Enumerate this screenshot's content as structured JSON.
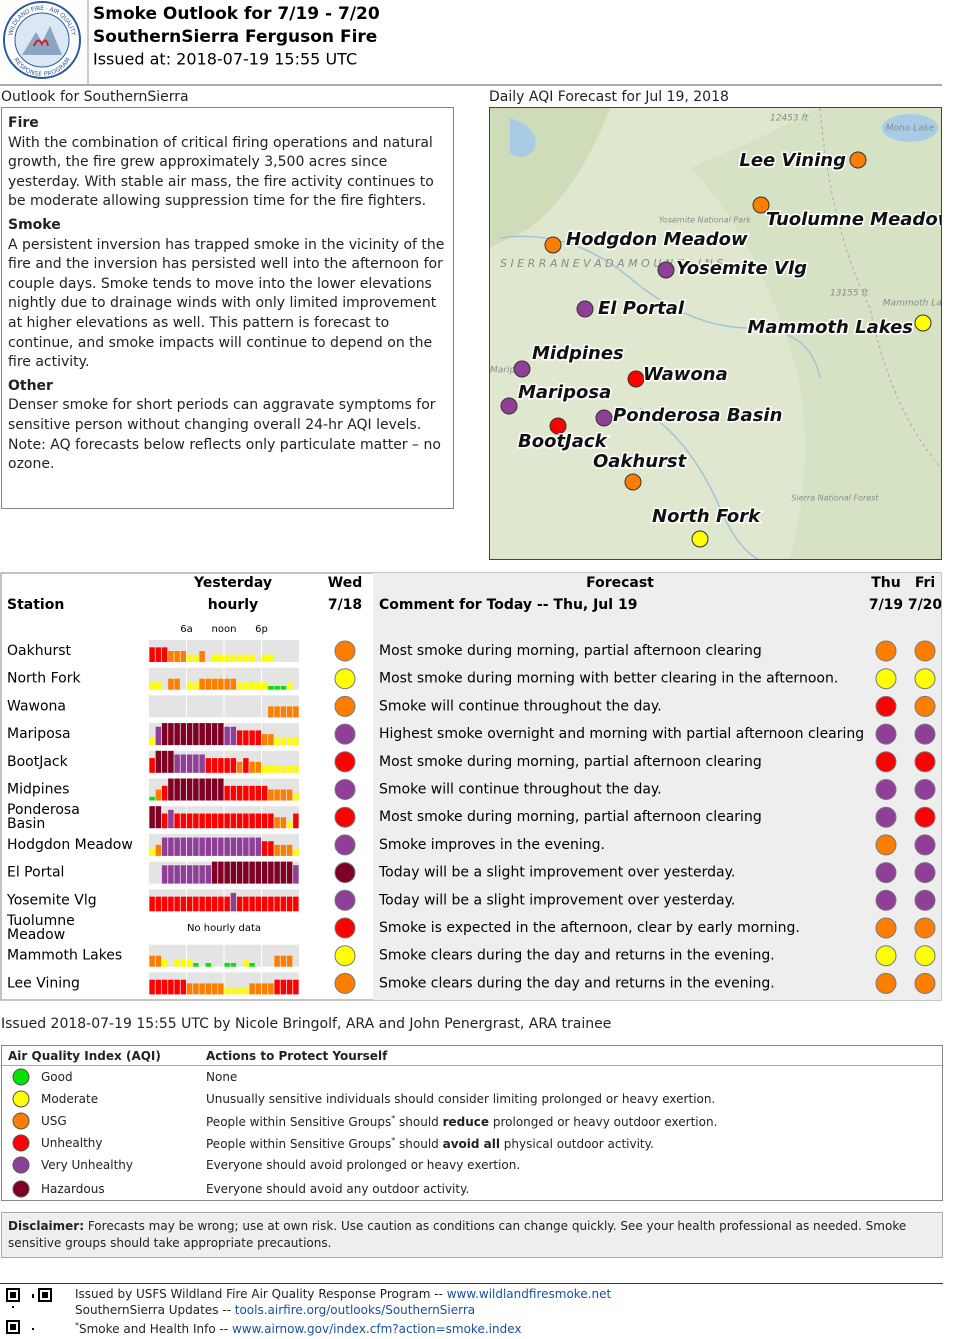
{
  "header": {
    "logo_top": "WILDLAND FIRE · AIR QUALITY",
    "logo_bottom": "RESPONSE PROGRAM",
    "title": "Smoke Outlook for 7/19 - 7/20",
    "subtitle": "SouthernSierra Ferguson Fire",
    "issued": "Issued at: 2018-07-19 15:55 UTC"
  },
  "outlook": {
    "heading": "Outlook for SouthernSierra",
    "sections": [
      {
        "title": "Fire",
        "text": "With the combination of critical firing operations and natural growth, the fire grew approximately 3,500 acres since yesterday. With stable air mass, the fire activity continues to be moderate allowing suppression time for the fire fighters."
      },
      {
        "title": "Smoke",
        "text": "A persistent inversion has trapped smoke in the vicinity of the fire and the inversion has persisted well into the afternoon for couple days. Smoke tends to move into the lower elevations nightly due to drainage winds with only limited improvement at higher elevations as well. This pattern is forecast to continue, and smoke impacts will continue to depend on the fire activity."
      },
      {
        "title": "Other",
        "text": "Denser smoke for short periods can aggravate symptoms for sensitive person without changing overall 24-hr AQI levels. Note: AQ forecasts below reflects only particulate matter – no ozone."
      }
    ]
  },
  "map": {
    "title": "Daily AQI Forecast for Jul 19, 2018",
    "features": [
      "12453 ft",
      "Mono Lake",
      "Yosemite National Park",
      "S I E R R A   N E V A D A   M O U N T A I N S",
      "13155 ft",
      "Mammoth Lakes",
      "Mariposa",
      "Sierra National Forest"
    ],
    "markers": [
      {
        "label": "Lee Vining",
        "level": "USG"
      },
      {
        "label": "Tuolumne Meadow",
        "level": "USG"
      },
      {
        "label": "Hodgdon Meadow",
        "level": "USG"
      },
      {
        "label": "Yosemite Vlg",
        "level": "Very Unhealthy"
      },
      {
        "label": "El Portal",
        "level": "Very Unhealthy"
      },
      {
        "label": "Mammoth Lakes",
        "level": "Moderate"
      },
      {
        "label": "Midpines",
        "level": "Very Unhealthy"
      },
      {
        "label": "Wawona",
        "level": "Unhealthy"
      },
      {
        "label": "Mariposa",
        "level": "Very Unhealthy"
      },
      {
        "label": "Ponderosa Basin",
        "level": "Very Unhealthy"
      },
      {
        "label": "BootJack",
        "level": "Unhealthy"
      },
      {
        "label": "Oakhurst",
        "level": "USG"
      },
      {
        "label": "North Fork",
        "level": "Moderate"
      }
    ]
  },
  "table": {
    "headers": {
      "yesterday": "Yesterday",
      "hourly": "hourly",
      "wed": "Wed",
      "wed_date": "7/18",
      "forecast": "Forecast",
      "station": "Station",
      "comment": "Comment for Today -- Thu, Jul 19",
      "thu": "Thu",
      "thu_date": "7/19",
      "fri": "Fri",
      "fri_date": "7/20"
    },
    "xlim": [
      0,
      24
    ],
    "ylim": [
      0,
      6
    ],
    "hour_ticks": [
      {
        "value": 6,
        "label": "6a"
      },
      {
        "value": 12,
        "label": "noon"
      },
      {
        "value": 18,
        "label": "6p"
      }
    ],
    "rows": [
      {
        "station": "Oakhurst",
        "hourly": [
          4,
          4,
          4,
          3,
          3,
          3,
          2,
          2,
          3,
          null,
          2,
          2,
          2,
          2,
          2,
          2,
          2,
          null,
          2,
          2,
          null,
          null,
          null,
          null
        ],
        "wed": "USG",
        "comment": "Most smoke during morning, partial afternoon clearing",
        "thu": "USG",
        "fri": "USG"
      },
      {
        "station": "North Fork",
        "hourly": [
          2,
          2,
          null,
          3,
          3,
          null,
          2,
          2,
          3,
          3,
          3,
          3,
          3,
          3,
          2,
          2,
          2,
          2,
          2,
          1,
          1,
          1,
          2,
          null
        ],
        "wed": "Moderate",
        "comment": "Most smoke during morning with better clearing in the afternoon.",
        "thu": "Moderate",
        "fri": "Moderate"
      },
      {
        "station": "Wawona",
        "hourly": [
          null,
          null,
          null,
          null,
          null,
          null,
          null,
          null,
          null,
          null,
          null,
          null,
          null,
          null,
          null,
          null,
          null,
          null,
          null,
          3,
          3,
          3,
          3,
          3
        ],
        "wed": "USG",
        "comment": "Smoke will continue throughout the day.",
        "thu": "Unhealthy",
        "fri": "USG"
      },
      {
        "station": "Mariposa",
        "hourly": [
          2,
          5,
          6,
          6,
          6,
          6,
          6,
          6,
          6,
          6,
          6,
          6,
          5,
          5,
          4,
          4,
          4,
          4,
          3,
          3,
          2,
          2,
          2,
          2
        ],
        "wed": "Very Unhealthy",
        "comment": "Highest smoke overnight and morning with partial afternoon clearing",
        "thu": "Very Unhealthy",
        "fri": "Very Unhealthy"
      },
      {
        "station": "BootJack",
        "hourly": [
          4,
          6,
          6,
          6,
          5,
          5,
          5,
          5,
          5,
          4,
          4,
          4,
          4,
          4,
          3,
          4,
          3,
          3,
          2,
          2,
          2,
          2,
          2,
          2
        ],
        "wed": "Unhealthy",
        "comment": "Most smoke during morning, partial afternoon clearing",
        "thu": "Unhealthy",
        "fri": "Unhealthy"
      },
      {
        "station": "Midpines",
        "hourly": [
          1,
          3,
          4,
          6,
          6,
          6,
          6,
          6,
          6,
          6,
          6,
          6,
          4,
          4,
          4,
          4,
          4,
          4,
          4,
          3,
          3,
          3,
          3,
          2
        ],
        "wed": "Very Unhealthy",
        "comment": "Smoke will continue throughout the day.",
        "thu": "Very Unhealthy",
        "fri": "Very Unhealthy"
      },
      {
        "station": "Ponderosa Basin",
        "hourly": [
          6,
          6,
          4,
          5,
          4,
          4,
          4,
          4,
          4,
          4,
          4,
          4,
          4,
          4,
          4,
          4,
          4,
          4,
          4,
          4,
          3,
          3,
          2,
          4
        ],
        "wed": "Unhealthy",
        "comment": "Most smoke during morning, partial afternoon clearing",
        "thu": "Very Unhealthy",
        "fri": "Unhealthy"
      },
      {
        "station": "Hodgdon Meadow",
        "hourly": [
          2,
          3,
          5,
          5,
          5,
          5,
          5,
          5,
          5,
          5,
          5,
          5,
          5,
          5,
          5,
          5,
          5,
          5,
          4,
          4,
          3,
          3,
          3,
          2
        ],
        "wed": "Very Unhealthy",
        "comment": "Smoke improves in the evening.",
        "thu": "USG",
        "fri": "Very Unhealthy"
      },
      {
        "station": "El Portal",
        "hourly": [
          null,
          null,
          5,
          5,
          5,
          5,
          5,
          5,
          5,
          5,
          6,
          6,
          6,
          6,
          6,
          6,
          6,
          6,
          6,
          6,
          6,
          6,
          6,
          5
        ],
        "wed": "Hazardous",
        "comment": "Today will be a slight improvement over yesterday.",
        "thu": "Very Unhealthy",
        "fri": "Very Unhealthy"
      },
      {
        "station": "Yosemite Vlg",
        "hourly": [
          4,
          4,
          4,
          4,
          4,
          4,
          4,
          4,
          4,
          4,
          4,
          4,
          4,
          5,
          4,
          4,
          4,
          4,
          4,
          4,
          4,
          4,
          4,
          4
        ],
        "wed": "Very Unhealthy",
        "comment": "Today will be a slight improvement over yesterday.",
        "thu": "Very Unhealthy",
        "fri": "Very Unhealthy"
      },
      {
        "station": "Tuolumne Meadow",
        "hourly_note": "No hourly data",
        "wed": "Unhealthy",
        "comment": "Smoke is expected in the afternoon, clear by early morning.",
        "thu": "USG",
        "fri": "USG"
      },
      {
        "station": "Mammoth Lakes",
        "hourly": [
          3,
          3,
          2,
          null,
          2,
          2,
          2,
          1,
          null,
          1,
          null,
          null,
          1,
          1,
          null,
          2,
          1,
          null,
          null,
          null,
          3,
          3,
          3,
          null
        ],
        "wed": "Moderate",
        "comment": "Smoke clears during the day and returns in the evening.",
        "thu": "Moderate",
        "fri": "Moderate"
      },
      {
        "station": "Lee Vining",
        "hourly": [
          4,
          4,
          4,
          4,
          4,
          4,
          3,
          3,
          3,
          3,
          3,
          3,
          2,
          2,
          2,
          2,
          3,
          3,
          3,
          3,
          4,
          4,
          4,
          4
        ],
        "wed": "USG",
        "comment": "Smoke clears during the day and returns in the evening.",
        "thu": "USG",
        "fri": "USG"
      }
    ]
  },
  "issued_by": "Issued 2018-07-19 15:55 UTC by Nicole Bringolf, ARA and John Penergrast, ARA trainee",
  "aqi": {
    "header": "Air Quality Index (AQI)",
    "actions_header": "Actions to Protect Yourself",
    "levels": [
      {
        "name": "Good",
        "color": "#00e400",
        "action": [
          "None"
        ]
      },
      {
        "name": "Moderate",
        "color": "#ffff00",
        "action": [
          "Unusually sensitive individuals should consider limiting prolonged or heavy exertion."
        ]
      },
      {
        "name": "USG",
        "color": "#ff7e00",
        "action": [
          "People within Sensitive Groups",
          "*",
          " should ",
          "reduce",
          " prolonged or heavy outdoor exertion."
        ]
      },
      {
        "name": "Unhealthy",
        "color": "#ff0000",
        "action": [
          "People within Sensitive Groups",
          "*",
          " should ",
          "avoid all",
          " physical outdoor activity."
        ]
      },
      {
        "name": "Very Unhealthy",
        "color": "#8f3f97",
        "action": [
          "Everyone should avoid prolonged or heavy exertion."
        ]
      },
      {
        "name": "Hazardous",
        "color": "#7e0023",
        "action": [
          "Everyone should avoid any outdoor activity."
        ]
      }
    ]
  },
  "disclaimer": {
    "label": "Disclaimer:",
    "text": " Forecasts may be wrong; use at own risk. Use caution as conditions can change quickly. See your health professional as needed. Smoke sensitive groups should take appropriate precautions."
  },
  "footer": {
    "lines": [
      {
        "text": "Issued by USFS Wildland Fire Air Quality Response Program -- ",
        "link": "www.wildlandfiresmoke.net"
      },
      {
        "text": "SouthernSierra Updates -- ",
        "link": "tools.airfire.org/outlooks/SouthernSierra"
      },
      {
        "mark": "*",
        "text": "Smoke and Health Info -- ",
        "link": "www.airnow.gov/index.cfm?action=smoke.index"
      }
    ]
  }
}
